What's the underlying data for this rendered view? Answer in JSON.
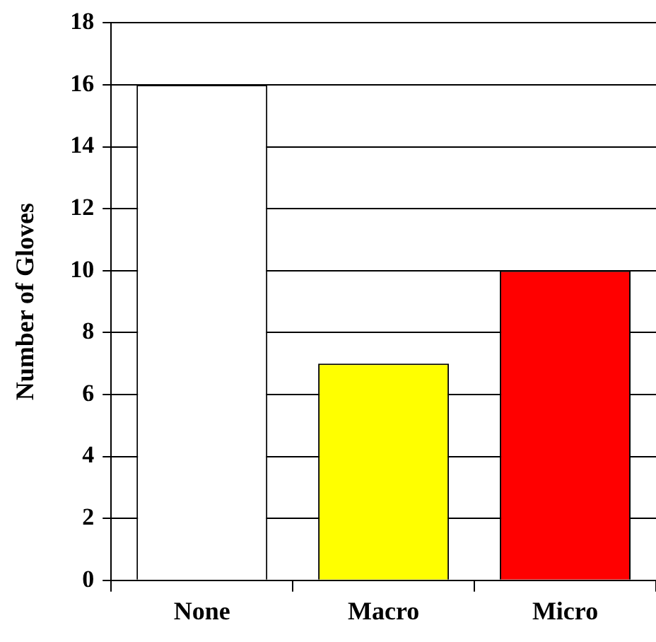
{
  "chart_data": {
    "type": "bar",
    "ylabel": "Number of Gloves",
    "categories": [
      "None",
      "Macro",
      "Micro"
    ],
    "values": [
      16,
      7,
      10
    ],
    "colors": [
      "#ffffff",
      "#ffff00",
      "#ff0000"
    ],
    "ylim": [
      0,
      18
    ],
    "yticks": [
      0,
      2,
      4,
      6,
      8,
      10,
      12,
      14,
      16,
      18
    ],
    "grid": "y",
    "legend": false
  }
}
